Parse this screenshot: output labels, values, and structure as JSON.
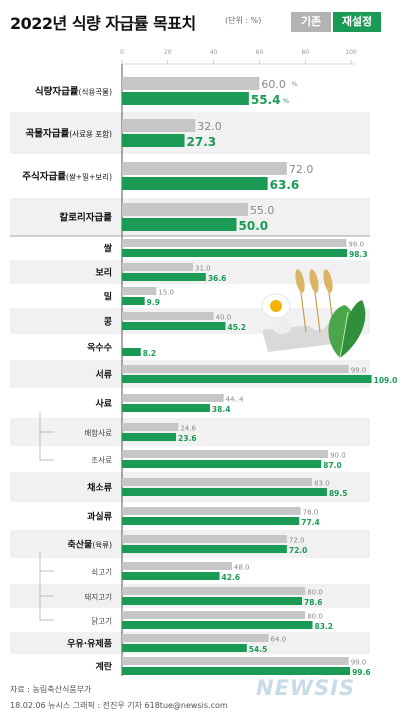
{
  "header": {
    "title": "2022년 식량 자급률 목표치",
    "unit": "(단위 : %)",
    "legend_old": "기존",
    "legend_new": "재설정"
  },
  "footer": {
    "source": "자료 : 농림축산식품부가",
    "credit": "18.02.06 뉴시스 그래픽 : 전진우 기자 618tue@newsis.com",
    "watermark": "NEWSIS"
  },
  "colors": {
    "old": "#c6c6c6",
    "new": "#1a9a55",
    "label_old": "#8a8a8a",
    "label_new": "#1a9a55",
    "axis": "#b3b3b3",
    "band": "#f1f1f1"
  },
  "chart_data": {
    "type": "bar",
    "orientation": "horizontal",
    "xlim": [
      0,
      100
    ],
    "xticks": [
      "0",
      "20",
      "40",
      "60",
      "80",
      "100"
    ],
    "series": [
      {
        "name": "기존"
      },
      {
        "name": "재설정"
      }
    ],
    "categories": [
      {
        "label": "식량자급률",
        "sub": "(식용곡물)",
        "bold": true,
        "old": 60.0,
        "new": 55.4,
        "old_text": "60.0",
        "new_text": "55.4",
        "pct": "%"
      },
      {
        "label": "곡물자급률",
        "sub": "(사료용 포함)",
        "bold": true,
        "old": 32.0,
        "new": 27.3,
        "old_text": "32.0",
        "new_text": "27.3",
        "pct": ""
      },
      {
        "label": "주식자급률",
        "sub": "(쌀+밀+보리)",
        "bold": true,
        "old": 72.0,
        "new": 63.6,
        "old_text": "72.0",
        "new_text": "63.6",
        "pct": ""
      },
      {
        "label": "칼로리자급률",
        "sub": "",
        "bold": true,
        "old": 55.0,
        "new": 50.0,
        "old_text": "55.0",
        "new_text": "50.0",
        "pct": ""
      },
      {
        "label": "쌀",
        "sub": "",
        "bold": true,
        "old": 98.0,
        "new": 98.3,
        "old_text": "98.0",
        "new_text": "98.3",
        "pct": ""
      },
      {
        "label": "보리",
        "sub": "",
        "bold": true,
        "old": 31.0,
        "new": 36.6,
        "old_text": "31.0",
        "new_text": "36.6",
        "pct": ""
      },
      {
        "label": "밀",
        "sub": "",
        "bold": true,
        "old": 15.0,
        "new": 9.9,
        "old_text": "15.0",
        "new_text": "9.9",
        "pct": ""
      },
      {
        "label": "콩",
        "sub": "",
        "bold": true,
        "old": 40.0,
        "new": 45.2,
        "old_text": "40.0",
        "new_text": "45.2",
        "pct": ""
      },
      {
        "label": "옥수수",
        "sub": "",
        "bold": true,
        "old": null,
        "new": 8.2,
        "old_text": "",
        "new_text": "8.2",
        "pct": ""
      },
      {
        "label": "서류",
        "sub": "",
        "bold": true,
        "old": 99.0,
        "new": 109.0,
        "old_text": "99.0",
        "new_text": "109.0",
        "pct": ""
      },
      {
        "label": "사료",
        "sub": "",
        "bold": true,
        "old": 44.4,
        "new": 38.4,
        "old_text": "44..4",
        "new_text": "38.4",
        "pct": ""
      },
      {
        "label": "배합사료",
        "sub": "",
        "bold": false,
        "old": 24.6,
        "new": 23.6,
        "old_text": "24.6",
        "new_text": "23.6",
        "pct": ""
      },
      {
        "label": "조사료",
        "sub": "",
        "bold": false,
        "old": 90.0,
        "new": 87.0,
        "old_text": "90.0",
        "new_text": "87.0",
        "pct": ""
      },
      {
        "label": "채소류",
        "sub": "",
        "bold": true,
        "old": 83.0,
        "new": 89.5,
        "old_text": "83.0",
        "new_text": "89.5",
        "pct": ""
      },
      {
        "label": "과실류",
        "sub": "",
        "bold": true,
        "old": 78.0,
        "new": 77.4,
        "old_text": "78.0",
        "new_text": "77.4",
        "pct": ""
      },
      {
        "label": "축산물",
        "sub": "(육류)",
        "bold": true,
        "old": 72.0,
        "new": 72.0,
        "old_text": "72.0",
        "new_text": "72.0",
        "pct": ""
      },
      {
        "label": "쇠고기",
        "sub": "",
        "bold": false,
        "old": 48.0,
        "new": 42.6,
        "old_text": "48.0",
        "new_text": "42.6",
        "pct": ""
      },
      {
        "label": "돼지고기",
        "sub": "",
        "bold": false,
        "old": 80.0,
        "new": 78.6,
        "old_text": "80.0",
        "new_text": "78.6",
        "pct": ""
      },
      {
        "label": "닭고기",
        "sub": "",
        "bold": false,
        "old": 80.0,
        "new": 83.2,
        "old_text": "80.0",
        "new_text": "83.2",
        "pct": ""
      },
      {
        "label": "우유·유제품",
        "sub": "",
        "bold": true,
        "old": 64.0,
        "new": 54.5,
        "old_text": "64.0",
        "new_text": "54.5",
        "pct": ""
      },
      {
        "label": "계란",
        "sub": "",
        "bold": true,
        "old": 99.0,
        "new": 99.6,
        "old_text": "99.0",
        "new_text": "99.6",
        "pct": ""
      }
    ]
  }
}
